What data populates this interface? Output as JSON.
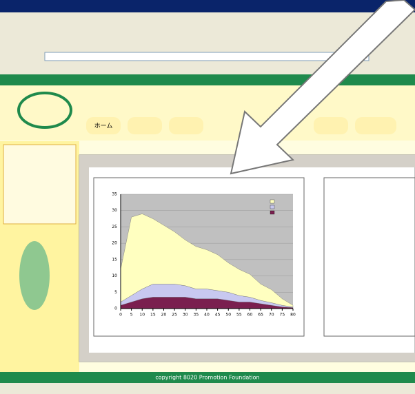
{
  "footer": {
    "copyright": "copyright 8020 Promotion Foundation"
  },
  "nav": {
    "home": "ホーム"
  },
  "chart_data": {
    "type": "area",
    "stacked": true,
    "x": [
      0,
      5,
      10,
      15,
      20,
      25,
      30,
      35,
      40,
      45,
      50,
      55,
      60,
      65,
      70,
      75,
      80
    ],
    "series": [
      {
        "color": "#7a1f4f",
        "values": [
          1,
          2,
          3,
          3.5,
          3.5,
          3.5,
          3.5,
          3,
          3,
          3,
          2.5,
          2,
          2,
          1.5,
          1,
          0.5,
          0.3
        ]
      },
      {
        "color": "#c8c8f0",
        "values": [
          1,
          2,
          3,
          4,
          4,
          4,
          3.5,
          3,
          3,
          2.5,
          2.5,
          2,
          1.5,
          1,
          0.8,
          0.5,
          0.2
        ]
      },
      {
        "color": "#ffffc0",
        "values": [
          10,
          24,
          23,
          20,
          18,
          16,
          14,
          13,
          12,
          11,
          9,
          8,
          7,
          5,
          4,
          2,
          0.5
        ]
      }
    ],
    "xlim": [
      0,
      80
    ],
    "xticks": [
      0,
      5,
      10,
      15,
      20,
      25,
      30,
      35,
      40,
      45,
      50,
      55,
      60,
      65,
      70,
      75,
      80
    ],
    "ylim": [
      0,
      35
    ],
    "yticks": [
      0,
      5,
      10,
      15,
      20,
      25,
      30,
      35
    ],
    "grid": true
  }
}
